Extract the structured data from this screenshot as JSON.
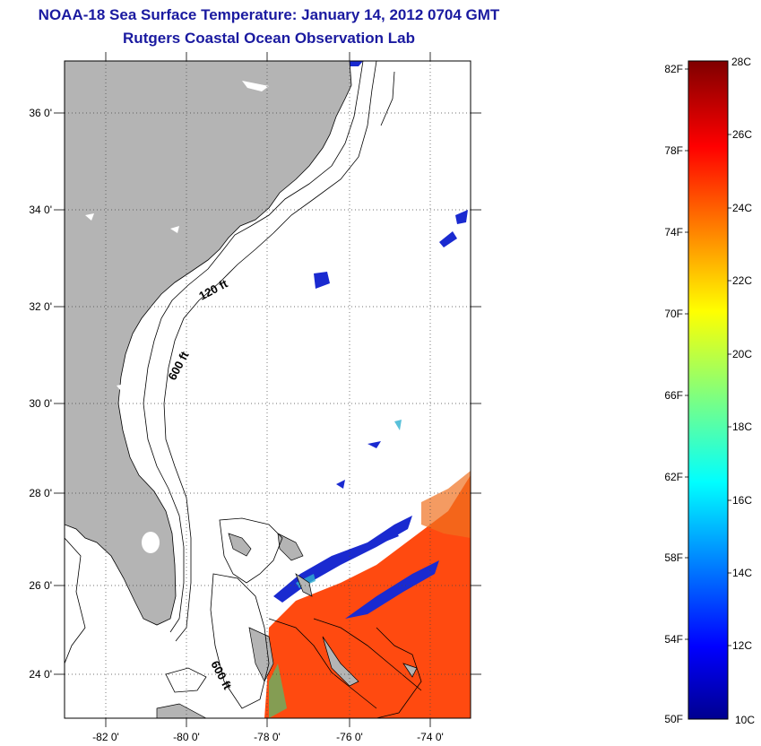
{
  "map": {
    "title": "NOAA-18 Sea Surface Temperature:  January 14, 2012 0704 GMT",
    "subtitle": "Rutgers Coastal Ocean Observation Lab",
    "lat_labels": [
      "36 0'",
      "34 0'",
      "32 0'",
      "30 0'",
      "28 0'",
      "26 0'",
      "24 0'"
    ],
    "lon_labels": [
      "-82 0'",
      "-80 0'",
      "-78 0'",
      "-76 0'",
      "-74 0'"
    ],
    "contour_labels": [
      "120 ft",
      "600 ft",
      "600 ft"
    ],
    "colors": {
      "land": "#b4b4b4",
      "title": "#1a1aa0",
      "warm_water": "#ff4a10",
      "cold_water": "#1a2ad0"
    }
  },
  "colorbar": {
    "fahrenheit_labels": [
      "82F",
      "78F",
      "74F",
      "70F",
      "66F",
      "62F",
      "58F",
      "54F",
      "50F"
    ],
    "celsius_labels": [
      "28C",
      "26C",
      "24C",
      "22C",
      "20C",
      "18C",
      "16C",
      "14C",
      "12C",
      "10C"
    ],
    "colormap": "jet"
  }
}
